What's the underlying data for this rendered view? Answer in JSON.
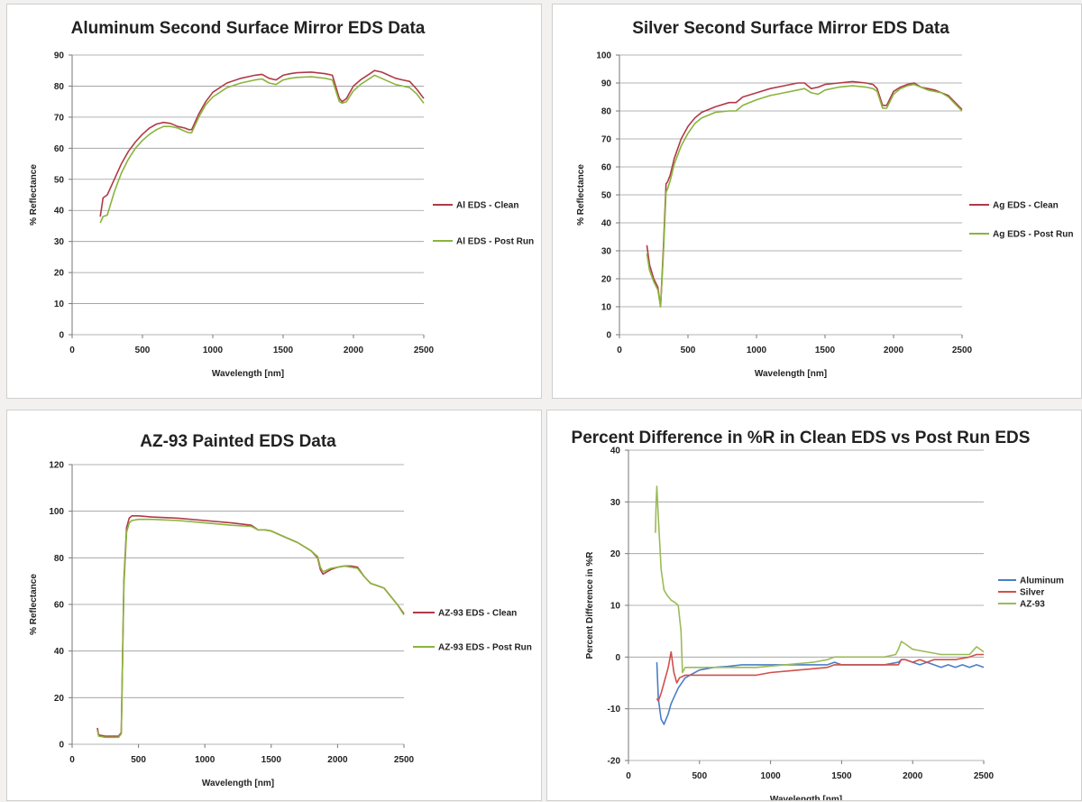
{
  "chart_data": [
    {
      "type": "line",
      "title": "Aluminum Second Surface Mirror EDS Data",
      "xlabel": "Wavelength [nm]",
      "ylabel": "% Reflectance",
      "xlim": [
        0,
        2500
      ],
      "ylim": [
        0,
        90
      ],
      "xticks": [
        0,
        500,
        1000,
        1500,
        2000,
        2500
      ],
      "yticks": [
        0,
        10,
        20,
        30,
        40,
        50,
        60,
        70,
        80,
        90
      ],
      "grid": true,
      "legend": "right",
      "series": [
        {
          "name": "Al EDS - Clean",
          "color": "#b03a48",
          "x": [
            200,
            220,
            250,
            300,
            350,
            400,
            450,
            500,
            550,
            600,
            650,
            700,
            750,
            800,
            830,
            850,
            900,
            950,
            1000,
            1100,
            1200,
            1300,
            1350,
            1400,
            1450,
            1500,
            1550,
            1600,
            1700,
            1800,
            1850,
            1900,
            1920,
            1950,
            2000,
            2050,
            2100,
            2150,
            2200,
            2250,
            2300,
            2350,
            2400,
            2450,
            2500
          ],
          "y": [
            38,
            44,
            45,
            50,
            55,
            59,
            62,
            64.5,
            66.5,
            67.8,
            68.3,
            68,
            67,
            66.5,
            66,
            66,
            71,
            75,
            78,
            81,
            82.5,
            83.5,
            83.8,
            82.5,
            82,
            83.5,
            84,
            84.3,
            84.5,
            84,
            83.5,
            76,
            75,
            76,
            80,
            82,
            83.5,
            85,
            84.5,
            83.5,
            82.5,
            82,
            81.5,
            79,
            76
          ]
        },
        {
          "name": "Al EDS - Post Run",
          "color": "#8ab43c",
          "x": [
            200,
            220,
            250,
            300,
            350,
            400,
            450,
            500,
            550,
            600,
            650,
            700,
            750,
            800,
            830,
            850,
            900,
            950,
            1000,
            1100,
            1200,
            1300,
            1350,
            1400,
            1450,
            1500,
            1550,
            1600,
            1700,
            1800,
            1850,
            1900,
            1920,
            1950,
            2000,
            2050,
            2100,
            2150,
            2200,
            2250,
            2300,
            2350,
            2400,
            2450,
            2500
          ],
          "y": [
            36,
            38,
            38.5,
            46,
            52,
            56.5,
            60,
            62.5,
            64.5,
            66,
            67,
            67,
            66.5,
            65.5,
            65,
            65,
            70,
            74,
            76.5,
            79.5,
            81,
            82,
            82.3,
            81,
            80.5,
            82,
            82.5,
            82.8,
            83,
            82.5,
            82,
            75,
            74.5,
            75,
            78.5,
            80.5,
            82,
            83.5,
            82.5,
            81.5,
            80.5,
            80,
            79.5,
            77.5,
            74.5
          ]
        }
      ]
    },
    {
      "type": "line",
      "title": "Silver Second Surface Mirror EDS Data",
      "xlabel": "Wavelength [nm]",
      "ylabel": "% Reflectance",
      "xlim": [
        0,
        2500
      ],
      "ylim": [
        0,
        100
      ],
      "xticks": [
        0,
        500,
        1000,
        1500,
        2000,
        2500
      ],
      "yticks": [
        0,
        10,
        20,
        30,
        40,
        50,
        60,
        70,
        80,
        90,
        100
      ],
      "grid": true,
      "legend": "right",
      "series": [
        {
          "name": "Ag EDS - Clean",
          "color": "#b03a48",
          "x": [
            200,
            220,
            250,
            280,
            300,
            320,
            340,
            350,
            370,
            400,
            450,
            500,
            550,
            600,
            700,
            800,
            850,
            900,
            1000,
            1100,
            1200,
            1300,
            1350,
            1400,
            1450,
            1500,
            1600,
            1700,
            1800,
            1850,
            1880,
            1920,
            1950,
            2000,
            2050,
            2100,
            2150,
            2200,
            2250,
            2300,
            2350,
            2400,
            2450,
            2500
          ],
          "y": [
            32,
            25,
            20,
            17,
            10,
            30,
            54,
            54.5,
            57,
            63,
            70,
            74.5,
            77.5,
            79.5,
            81.5,
            83,
            83,
            85,
            86.5,
            88,
            89,
            90,
            90,
            88,
            88.5,
            89.5,
            90,
            90.5,
            90,
            89.5,
            88,
            82,
            82,
            87,
            88.5,
            89.5,
            90,
            88.5,
            88,
            87.5,
            86.5,
            85.5,
            83,
            80.5
          ]
        },
        {
          "name": "Ag EDS - Post Run",
          "color": "#8ab43c",
          "x": [
            200,
            220,
            250,
            280,
            300,
            320,
            340,
            350,
            370,
            400,
            450,
            500,
            550,
            600,
            700,
            800,
            850,
            900,
            1000,
            1100,
            1200,
            1300,
            1350,
            1400,
            1450,
            1500,
            1600,
            1700,
            1800,
            1850,
            1880,
            1920,
            1950,
            2000,
            2050,
            2100,
            2150,
            2200,
            2250,
            2300,
            2350,
            2400,
            2450,
            2500
          ],
          "y": [
            29,
            23,
            19,
            16,
            10,
            28,
            51,
            52,
            55,
            61,
            67.5,
            72,
            75.5,
            77.5,
            79.5,
            80,
            80,
            82,
            84,
            85.5,
            86.5,
            87.5,
            88,
            86.5,
            86,
            87.5,
            88.5,
            89,
            88.5,
            88,
            87,
            81,
            81,
            86,
            88,
            89,
            89.5,
            88.5,
            87.5,
            87,
            86.5,
            85,
            82.5,
            80
          ]
        }
      ]
    },
    {
      "type": "line",
      "title": "AZ-93 Painted EDS Data",
      "xlabel": "Wavelength [nm]",
      "ylabel": "% Reflectance",
      "xlim": [
        0,
        2500
      ],
      "ylim": [
        0,
        120
      ],
      "xticks": [
        0,
        500,
        1000,
        1500,
        2000,
        2500
      ],
      "yticks": [
        0,
        20,
        40,
        60,
        80,
        100,
        120
      ],
      "grid": true,
      "legend": "right",
      "series": [
        {
          "name": "AZ-93 EDS - Clean",
          "color": "#b03a48",
          "x": [
            190,
            200,
            250,
            300,
            350,
            370,
            390,
            410,
            430,
            450,
            500,
            600,
            800,
            1000,
            1200,
            1350,
            1400,
            1450,
            1500,
            1600,
            1700,
            1800,
            1850,
            1870,
            1890,
            1950,
            2000,
            2050,
            2100,
            2150,
            2200,
            2250,
            2300,
            2350,
            2400,
            2450,
            2500
          ],
          "y": [
            7,
            4,
            3.5,
            3.5,
            3.5,
            5,
            70,
            93,
            97,
            98,
            98,
            97.5,
            97,
            96,
            95,
            94,
            92,
            92,
            91.5,
            89,
            86.5,
            83,
            80,
            75,
            73,
            75,
            76,
            76.5,
            76.5,
            76,
            72,
            69,
            68,
            67,
            63.5,
            60,
            56
          ]
        },
        {
          "name": "AZ-93 EDS - Post Run",
          "color": "#8ab43c",
          "x": [
            190,
            200,
            250,
            300,
            350,
            370,
            390,
            410,
            430,
            450,
            500,
            600,
            800,
            1000,
            1200,
            1350,
            1400,
            1450,
            1500,
            1600,
            1700,
            1800,
            1850,
            1870,
            1890,
            1950,
            2000,
            2050,
            2100,
            2150,
            2200,
            2250,
            2300,
            2350,
            2400,
            2450,
            2500
          ],
          "y": [
            6,
            3.5,
            3,
            3,
            3,
            4.5,
            68,
            91,
            95,
            96,
            96.5,
            96.5,
            96,
            95,
            94,
            93.5,
            92,
            92,
            91.5,
            89,
            86.5,
            83,
            80.5,
            76,
            74,
            75.5,
            76,
            76.5,
            76,
            75.5,
            72,
            69,
            68,
            67,
            63.5,
            60,
            55.5
          ]
        }
      ]
    },
    {
      "type": "line",
      "title": "Percent Difference in %R in Clean EDS vs Post Run EDS",
      "xlabel": "Wavelength [nm]",
      "ylabel": "Percent Difference in %R",
      "xlim": [
        0,
        2500
      ],
      "ylim": [
        -20,
        40
      ],
      "xticks": [
        0,
        500,
        1000,
        1500,
        2000,
        2500
      ],
      "yticks": [
        -20,
        -10,
        0,
        10,
        20,
        30,
        40
      ],
      "grid": true,
      "legend": "right",
      "series": [
        {
          "name": "Aluminum",
          "color": "#4a7ec7",
          "x": [
            200,
            210,
            230,
            250,
            280,
            300,
            350,
            400,
            500,
            600,
            700,
            800,
            900,
            1000,
            1100,
            1200,
            1300,
            1400,
            1450,
            1500,
            1600,
            1700,
            1800,
            1900,
            1920,
            1950,
            2000,
            2050,
            2100,
            2150,
            2200,
            2250,
            2300,
            2350,
            2400,
            2450,
            2500
          ],
          "y": [
            -1,
            -8,
            -12,
            -13,
            -11,
            -9,
            -6,
            -4,
            -2.5,
            -2,
            -1.8,
            -1.5,
            -1.5,
            -1.5,
            -1.5,
            -1.5,
            -1.5,
            -1.5,
            -1,
            -1.5,
            -1.5,
            -1.5,
            -1.5,
            -1,
            -0.5,
            -0.5,
            -1,
            -1.5,
            -1,
            -1.5,
            -2,
            -1.5,
            -2,
            -1.5,
            -2,
            -1.5,
            -2
          ]
        },
        {
          "name": "Silver",
          "color": "#d0504a",
          "x": [
            200,
            210,
            230,
            250,
            280,
            300,
            320,
            340,
            360,
            400,
            500,
            600,
            700,
            800,
            900,
            1000,
            1200,
            1400,
            1450,
            1500,
            1600,
            1700,
            1800,
            1900,
            1920,
            1950,
            2000,
            2050,
            2100,
            2150,
            2200,
            2300,
            2400,
            2450,
            2500
          ],
          "y": [
            -8,
            -8.5,
            -7,
            -5,
            -2,
            1,
            -3,
            -5,
            -4,
            -3.5,
            -3.5,
            -3.5,
            -3.5,
            -3.5,
            -3.5,
            -3,
            -2.5,
            -2,
            -1.5,
            -1.5,
            -1.5,
            -1.5,
            -1.5,
            -1.5,
            -0.5,
            -0.5,
            -1,
            -0.5,
            -1,
            -0.5,
            -0.5,
            -0.5,
            0,
            0.5,
            0.5
          ]
        },
        {
          "name": "AZ-93",
          "color": "#9bbb59",
          "x": [
            190,
            195,
            200,
            210,
            220,
            230,
            250,
            270,
            300,
            330,
            350,
            370,
            380,
            400,
            500,
            700,
            900,
            1100,
            1300,
            1400,
            1450,
            1500,
            1600,
            1700,
            1800,
            1880,
            1900,
            1920,
            1950,
            2000,
            2100,
            2200,
            2300,
            2400,
            2450,
            2500
          ],
          "y": [
            24,
            30,
            33,
            27,
            22,
            17,
            13,
            12,
            11,
            10.5,
            10,
            5,
            -3,
            -2,
            -2,
            -2,
            -2,
            -1.5,
            -1,
            -0.5,
            0,
            0,
            0,
            0,
            0,
            0.5,
            1.5,
            3,
            2.5,
            1.5,
            1,
            0.5,
            0.5,
            0.5,
            2,
            1
          ]
        }
      ]
    }
  ]
}
